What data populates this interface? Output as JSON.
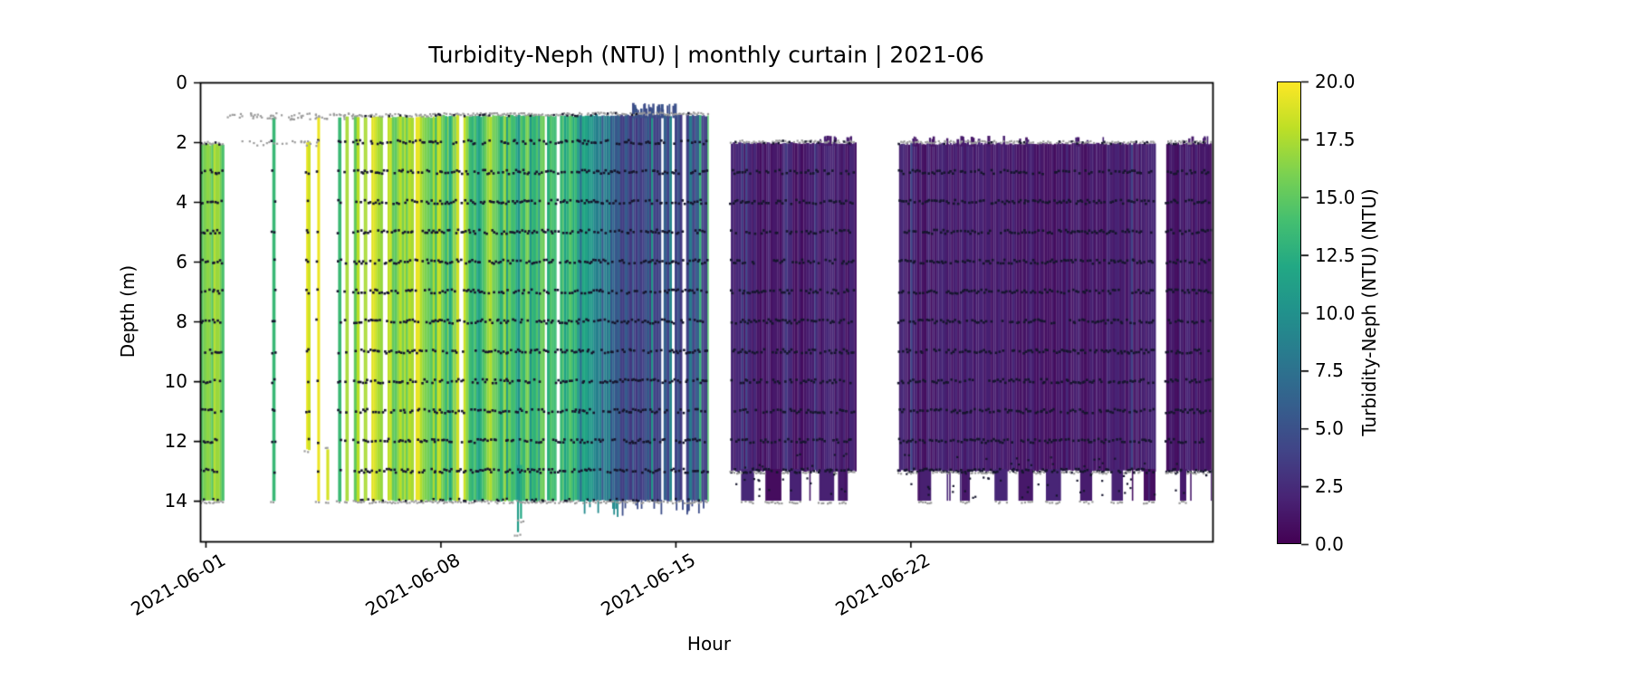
{
  "figure": {
    "background": "#ffffff"
  },
  "chart_data": {
    "type": "heatmap",
    "variant": "curtain-plot",
    "title": "Turbidity-Neph (NTU) | monthly curtain | 2021-06",
    "xlabel": "Hour",
    "ylabel": "Depth (m)",
    "x_tick_labels": [
      "2021-06-01",
      "2021-06-08",
      "2021-06-15",
      "2021-06-22"
    ],
    "x_tick_days": [
      0,
      7,
      14,
      21
    ],
    "xlim_days": [
      -0.16,
      30.0
    ],
    "x_period": {
      "start": "2021-06-01",
      "end": "2021-07-01"
    },
    "y_tick_labels": [
      "0",
      "2",
      "4",
      "6",
      "8",
      "10",
      "12",
      "14"
    ],
    "y_ticks": [
      0,
      2,
      4,
      6,
      8,
      10,
      12,
      14
    ],
    "ylim": [
      15.36,
      0
    ],
    "grid": false,
    "legend": "colorbar-right",
    "colorbar": {
      "label": "Turbidity-Neph (NTU) (NTU)",
      "tick_labels": [
        "0.0",
        "2.5",
        "5.0",
        "7.5",
        "10.0",
        "12.5",
        "15.0",
        "17.5",
        "20.0"
      ],
      "ticks": [
        0,
        2.5,
        5,
        7.5,
        10,
        12.5,
        15,
        17.5,
        20
      ],
      "min": 0,
      "max": 20,
      "colormap": "viridis",
      "colormap_stops": [
        "#440154",
        "#482475",
        "#414487",
        "#355f8d",
        "#2a788e",
        "#21918c",
        "#22a884",
        "#44bf70",
        "#7ad151",
        "#bddf26",
        "#fde725"
      ]
    },
    "colors": {
      "axis": "#000000",
      "sensor_dots": "#16162e",
      "edge_dots": "#9b9b9b"
    },
    "sensor_row_depths": [
      2,
      3,
      4,
      5,
      6,
      7,
      8,
      9,
      10,
      11,
      12,
      13,
      14
    ],
    "curtain_segments": [
      {
        "name": "jun01-column",
        "d0": -0.14,
        "d1": 0.55,
        "top": 2.08,
        "bottom": 14.0,
        "v": [
          14.0,
          18.5
        ],
        "rows": true,
        "edge_dots": true
      },
      {
        "name": "single-a",
        "d0": 1.99,
        "d1": 2.07,
        "top": 1.15,
        "bottom": 14.0,
        "v": [
          13.0,
          14.5
        ],
        "rows": true
      },
      {
        "name": "single-b",
        "d0": 3.0,
        "d1": 3.08,
        "top": 2.0,
        "bottom": 12.3,
        "v": [
          18.5,
          19.8
        ],
        "rows": true
      },
      {
        "name": "single-c",
        "d0": 3.33,
        "d1": 3.4,
        "top": 1.15,
        "bottom": 14.0,
        "v": [
          18.5,
          19.8
        ],
        "rows": true
      },
      {
        "name": "single-d",
        "d0": 3.6,
        "d1": 3.66,
        "top": 12.3,
        "bottom": 14.0,
        "v": [
          18.5,
          19.8
        ],
        "rows": false
      },
      {
        "name": "single-e",
        "d0": 3.95,
        "d1": 4.03,
        "top": 1.15,
        "bottom": 14.0,
        "v": [
          13.5,
          15.5
        ],
        "rows": true
      },
      {
        "name": "single-f",
        "d0": 4.17,
        "d1": 4.24,
        "top": 1.15,
        "bottom": 14.0,
        "v": [
          17.0,
          19.5
        ],
        "rows": true
      },
      {
        "name": "dense-yellow",
        "d0": 4.42,
        "d1": 6.85,
        "top": 1.15,
        "bottom": 14.0,
        "v": [
          14.0,
          19.8
        ],
        "gaps": [
          4.62,
          4.85,
          5.3,
          6.2
        ],
        "rows": true,
        "edge_dots": true
      },
      {
        "name": "dense-mixed",
        "d0": 6.85,
        "d1": 11.15,
        "top": 1.12,
        "bottom": 14.0,
        "v": [
          12.5,
          19.5
        ],
        "v_end": [
          8.5,
          14.5
        ],
        "gaps": [
          7.55,
          10.1,
          10.5
        ],
        "rows": true,
        "edge_dots": true
      },
      {
        "name": "dense-teal",
        "d0": 11.15,
        "d1": 12.27,
        "top": 1.1,
        "bottom": 14.0,
        "v": [
          6.5,
          12.5
        ],
        "v_end": [
          4.5,
          9.5
        ],
        "rows": true,
        "edge_dots": true,
        "below_spikes": true
      },
      {
        "name": "navy",
        "d0": 12.27,
        "d1": 14.97,
        "top": 1.1,
        "bottom": 14.0,
        "v": [
          3.2,
          6.2
        ],
        "streak_p": 0.09,
        "streak_v": [
          7.5,
          12.5
        ],
        "end_green_streaks": true,
        "gaps": [
          13.56,
          13.9,
          14.2
        ],
        "rows": true,
        "edge_dots": true,
        "below_spikes": true,
        "top_spikes": {
          "from": 12.7,
          "to": 14.0,
          "rise": 0.68,
          "count": 22
        }
      },
      {
        "name": "purple-1",
        "d0": 15.65,
        "d1": 19.34,
        "top": 2.03,
        "bottom": 13.0,
        "v": [
          0.6,
          2.4
        ],
        "streak_p": 0.05,
        "streak_v": [
          3.2,
          4.5
        ],
        "comb": {
          "deep": 14.0,
          "period": 0.68,
          "duty": 0.5
        },
        "rows": true,
        "edge_dots": true,
        "top_spikes": {
          "from": 18.2,
          "to": 19.3,
          "rise": 1.76,
          "count": 14
        }
      },
      {
        "name": "purple-2",
        "d0": 20.66,
        "d1": 28.3,
        "top": 2.05,
        "bottom": 13.0,
        "v": [
          0.6,
          2.4
        ],
        "streak_p": 0.05,
        "streak_v": [
          3.2,
          4.5
        ],
        "comb": {
          "deep": 14.0,
          "period": 1.0,
          "duty": 0.3
        },
        "rows": true,
        "edge_dots": true,
        "top_spikes": {
          "from": 20.75,
          "to": 27.3,
          "rise": 1.78,
          "count": 26
        }
      },
      {
        "name": "purple-3",
        "d0": 28.62,
        "d1": 30.0,
        "top": 2.05,
        "bottom": 13.0,
        "v": [
          0.6,
          2.4
        ],
        "streak_p": 0.05,
        "streak_v": [
          3.2,
          4.5
        ],
        "comb": {
          "deep": 14.0,
          "period": 0.8,
          "duty": 0.4
        },
        "rows": true,
        "edge_dots": true,
        "top_spikes": {
          "from": 28.7,
          "to": 29.9,
          "rise": 1.8,
          "count": 8
        }
      }
    ],
    "deep_spikes": [
      {
        "day": 9.28,
        "to_depth": 15.05,
        "value": 11
      },
      {
        "day": 9.37,
        "to_depth": 14.6,
        "value": 12
      }
    ],
    "sparse_scatter": {
      "day_range": [
        0.6,
        4.4
      ],
      "depths": [
        1.1,
        2.0
      ]
    }
  }
}
